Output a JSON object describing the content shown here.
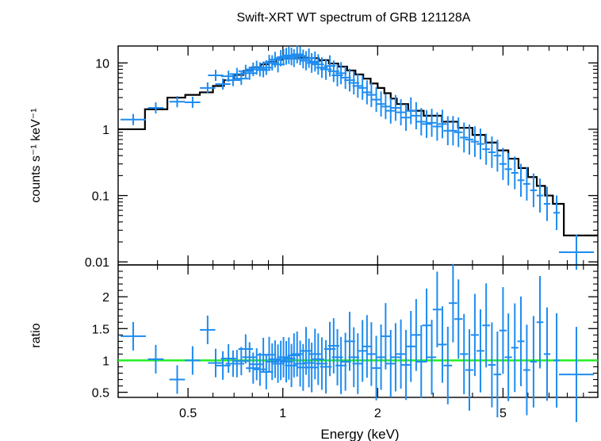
{
  "chart_data": [
    {
      "type": "scatter",
      "title": "Swift-XRT WT spectrum of GRB 121128A",
      "xlabel": "Energy (keV)",
      "ylabel": "counts s⁻¹ keV⁻¹",
      "x_scale": "log",
      "y_scale": "log",
      "xlim": [
        0.3,
        10
      ],
      "ylim": [
        0.009,
        18
      ],
      "x_ticks": [
        {
          "value": 0.5,
          "label": "0.5"
        },
        {
          "value": 1,
          "label": "1"
        },
        {
          "value": 2,
          "label": "2"
        },
        {
          "value": 5,
          "label": "5"
        }
      ],
      "y_ticks": [
        {
          "value": 0.01,
          "label": "0.01"
        },
        {
          "value": 0.1,
          "label": "0.1"
        },
        {
          "value": 1,
          "label": "1"
        },
        {
          "value": 10,
          "label": "10"
        }
      ],
      "grid": false,
      "legend": "none",
      "colors": {
        "data": "#1e8cf0",
        "model": "#000000"
      },
      "series": [
        {
          "kind": "data",
          "x": [
            0.335,
            0.395,
            0.462,
            0.517,
            0.577,
            0.612,
            0.645,
            0.672,
            0.695,
            0.715,
            0.738,
            0.762,
            0.784,
            0.805,
            0.826,
            0.846,
            0.867,
            0.886,
            0.905,
            0.925,
            0.945,
            0.965,
            0.985,
            1.005,
            1.025,
            1.045,
            1.065,
            1.085,
            1.11,
            1.135,
            1.16,
            1.185,
            1.21,
            1.235,
            1.265,
            1.295,
            1.33,
            1.37,
            1.41,
            1.45,
            1.49,
            1.53,
            1.58,
            1.63,
            1.68,
            1.73,
            1.79,
            1.85,
            1.91,
            1.98,
            2.05,
            2.12,
            2.2,
            2.28,
            2.37,
            2.46,
            2.55,
            2.65,
            2.75,
            2.86,
            2.97,
            3.09,
            3.21,
            3.34,
            3.47,
            3.61,
            3.76,
            3.91,
            4.07,
            4.24,
            4.42,
            4.61,
            4.8,
            5.0,
            5.2,
            5.45,
            5.7,
            5.95,
            6.25,
            6.55,
            6.9,
            7.4,
            8.55
          ],
          "y": [
            1.4,
            2.1,
            2.6,
            2.55,
            4.2,
            6.5,
            4.8,
            6.3,
            5.5,
            6.8,
            5.8,
            7.5,
            7.0,
            8.0,
            8.5,
            8.0,
            7.8,
            8.5,
            10.2,
            10.0,
            11.2,
            9.5,
            11.8,
            12.2,
            12.6,
            13.0,
            12.5,
            11.8,
            13.5,
            12.8,
            11.5,
            10.8,
            11.8,
            10.0,
            10.5,
            9.5,
            8.5,
            8.0,
            9.0,
            7.5,
            6.5,
            7.0,
            6.0,
            5.5,
            5.0,
            4.5,
            4.2,
            3.6,
            3.3,
            2.8,
            2.4,
            2.2,
            1.9,
            2.1,
            1.8,
            1.5,
            1.9,
            1.6,
            1.3,
            1.2,
            1.25,
            1.1,
            1.2,
            0.95,
            0.95,
            0.9,
            0.75,
            0.7,
            0.65,
            0.6,
            0.5,
            0.45,
            0.4,
            0.3,
            0.25,
            0.22,
            0.17,
            0.15,
            0.12,
            0.1,
            0.075,
            0.055,
            0.014
          ]
        },
        {
          "kind": "model",
          "x": [
            0.3,
            0.365,
            0.43,
            0.49,
            0.545,
            0.6,
            0.65,
            0.7,
            0.75,
            0.8,
            0.85,
            0.9,
            0.95,
            1.0,
            1.1,
            1.2,
            1.3,
            1.4,
            1.5,
            1.6,
            1.7,
            1.8,
            1.9,
            2.0,
            2.1,
            2.2,
            2.3,
            2.5,
            2.8,
            3.2,
            3.6,
            4.0,
            4.4,
            4.8,
            5.2,
            5.6,
            6.0,
            6.4,
            6.8,
            7.2,
            7.8,
            10.0
          ],
          "y": [
            1.0,
            2.0,
            3.0,
            3.3,
            3.6,
            4.5,
            5.5,
            6.6,
            7.6,
            8.6,
            9.5,
            10.4,
            11.2,
            11.7,
            12.0,
            11.8,
            11.0,
            9.8,
            8.8,
            7.7,
            6.7,
            5.8,
            4.9,
            4.2,
            3.5,
            2.9,
            2.4,
            1.9,
            1.6,
            1.3,
            1.05,
            0.82,
            0.63,
            0.48,
            0.36,
            0.26,
            0.19,
            0.14,
            0.1,
            0.075,
            0.025,
            0.025
          ]
        }
      ]
    },
    {
      "type": "scatter",
      "xlabel": "Energy (keV)",
      "ylabel": "ratio",
      "x_scale": "log",
      "xlim": [
        0.3,
        10
      ],
      "ylim": [
        0.42,
        2.5
      ],
      "x_ticks": [
        {
          "value": 0.5,
          "label": "0.5"
        },
        {
          "value": 1,
          "label": "1"
        },
        {
          "value": 2,
          "label": "2"
        },
        {
          "value": 5,
          "label": "5"
        }
      ],
      "y_ticks": [
        {
          "value": 0.5,
          "label": "0.5"
        },
        {
          "value": 1,
          "label": "1"
        },
        {
          "value": 1.5,
          "label": "1.5"
        },
        {
          "value": 2,
          "label": "2"
        }
      ],
      "grid": false,
      "legend": "none",
      "colors": {
        "data": "#1e8cf0",
        "reference": "#22ee22"
      },
      "reference_line": 1.0,
      "series": [
        {
          "kind": "ratio",
          "x": [
            0.335,
            0.395,
            0.462,
            0.517,
            0.577,
            0.612,
            0.645,
            0.672,
            0.695,
            0.715,
            0.738,
            0.762,
            0.784,
            0.805,
            0.826,
            0.846,
            0.867,
            0.886,
            0.905,
            0.925,
            0.945,
            0.965,
            0.985,
            1.005,
            1.025,
            1.045,
            1.065,
            1.085,
            1.11,
            1.135,
            1.16,
            1.185,
            1.21,
            1.235,
            1.265,
            1.295,
            1.33,
            1.37,
            1.41,
            1.45,
            1.49,
            1.53,
            1.58,
            1.63,
            1.68,
            1.73,
            1.79,
            1.85,
            1.91,
            1.98,
            2.05,
            2.12,
            2.2,
            2.28,
            2.37,
            2.46,
            2.55,
            2.65,
            2.75,
            2.86,
            2.97,
            3.09,
            3.21,
            3.34,
            3.47,
            3.61,
            3.76,
            3.91,
            4.07,
            4.24,
            4.42,
            4.61,
            4.8,
            5.0,
            5.2,
            5.45,
            5.7,
            5.95,
            6.25,
            6.55,
            6.9,
            7.4,
            8.55
          ],
          "y": [
            1.38,
            1.02,
            0.7,
            1.0,
            1.48,
            0.96,
            0.92,
            1.03,
            0.95,
            0.95,
            0.99,
            1.18,
            1.05,
            0.88,
            0.94,
            0.86,
            1.09,
            0.82,
            1.09,
            0.98,
            1.02,
            0.95,
            1.0,
            1.05,
            0.98,
            1.03,
            0.92,
            1.08,
            1.1,
            0.95,
            0.89,
            1.15,
            0.96,
            0.89,
            1.1,
            1.02,
            0.95,
            0.9,
            1.18,
            1.23,
            1.05,
            0.92,
            0.98,
            1.3,
            1.05,
            0.95,
            1.15,
            1.22,
            1.1,
            0.88,
            1.05,
            1.38,
            0.95,
            1.05,
            1.1,
            0.93,
            1.22,
            1.4,
            0.98,
            1.55,
            1.05,
            1.8,
            1.25,
            0.92,
            1.9,
            1.65,
            1.1,
            0.85,
            1.4,
            1.15,
            1.55,
            0.93,
            0.78,
            1.47,
            1.05,
            1.2,
            1.3,
            0.85,
            0.98,
            1.6,
            1.1,
            1.0,
            0.78
          ]
        }
      ]
    }
  ]
}
